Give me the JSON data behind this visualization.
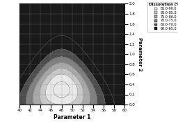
{
  "title": "Dissolution (%)",
  "xlabel": "Parameter 1",
  "ylabel": "Parameter 2",
  "x_min": 40,
  "x_max": 60,
  "y_min": 0,
  "y_max": 2,
  "x_ticks": [
    40,
    42,
    44,
    46,
    48,
    50,
    52,
    54,
    56,
    58,
    60
  ],
  "y_ticks": [
    0,
    0.2,
    0.4,
    0.6,
    0.8,
    1.0,
    1.2,
    1.4,
    1.6,
    1.8,
    2.0
  ],
  "levels": [
    60,
    65,
    70,
    75,
    80,
    85,
    90
  ],
  "fill_colors": [
    "#1a1a1a",
    "#4d4d4d",
    "#808080",
    "#a8a8a8",
    "#c8c8c8",
    "#e8e8e8"
  ],
  "legend_labels": [
    "85.0-90.0",
    "80.0-85.0",
    "75.0-80.0",
    "70.0-75.0",
    "65.0-70.0",
    "60.0-65.0"
  ],
  "legend_colors": [
    "#e8e8e8",
    "#c8c8c8",
    "#a8a8a8",
    "#808080",
    "#4d4d4d",
    "#1a1a1a"
  ],
  "x_center": 48.0,
  "peak_y": 0.35
}
